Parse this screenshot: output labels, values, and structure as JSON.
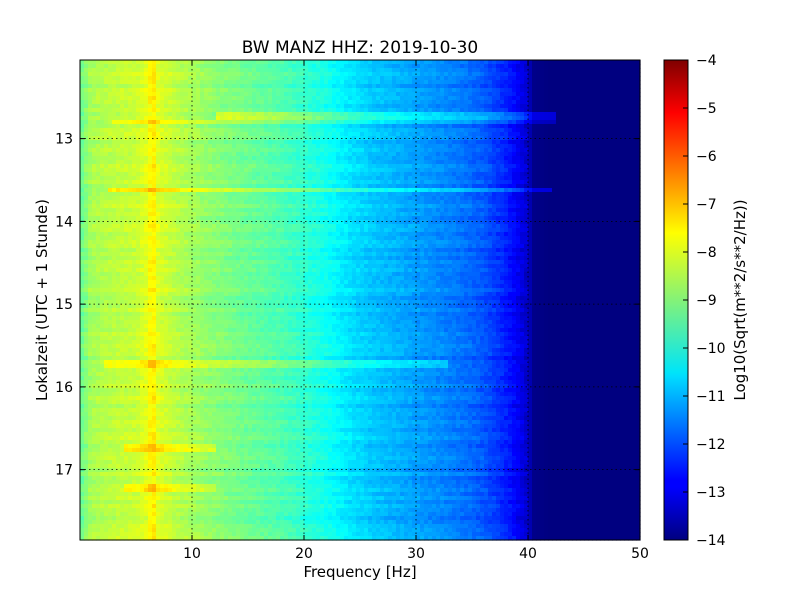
{
  "chart_data": {
    "type": "heatmap",
    "title": "BW MANZ HHZ: 2019-10-30",
    "xlabel": "Frequency [Hz]",
    "ylabel": "Lokalzeit (UTC + 1 Stunde)",
    "xlim": [
      0,
      50
    ],
    "ylim": [
      12.05,
      17.85
    ],
    "x_ticks": [
      10,
      20,
      30,
      40,
      50
    ],
    "x_tick_labels": [
      "10",
      "20",
      "30",
      "40",
      "50"
    ],
    "y_ticks": [
      13,
      14,
      15,
      16,
      17
    ],
    "y_tick_labels": [
      "13",
      "14",
      "15",
      "16",
      "17"
    ],
    "grid": true,
    "y_inverted": true,
    "colorbar": {
      "label": "Log10(Sqrt(m**2/s**2/Hz))",
      "range": [
        -14,
        -4
      ],
      "ticks": [
        -4,
        -5,
        -6,
        -7,
        -8,
        -9,
        -10,
        -11,
        -12,
        -13,
        -14
      ],
      "tick_labels": [
        "−4",
        "−5",
        "−6",
        "−7",
        "−8",
        "−9",
        "−10",
        "−11",
        "−12",
        "−13",
        "−14"
      ],
      "colormap": "jet"
    },
    "frequency_profile": {
      "frequency_hz": [
        0,
        1,
        3,
        5,
        6,
        6.5,
        7,
        9,
        12,
        15,
        18,
        20,
        22,
        24,
        26,
        28,
        30,
        32,
        34,
        36,
        37.5,
        39,
        40,
        40.5,
        42,
        45,
        50
      ],
      "level": [
        -9.3,
        -8.6,
        -8.4,
        -8.3,
        -8.0,
        -7.5,
        -8.1,
        -8.5,
        -8.9,
        -9.2,
        -9.5,
        -9.8,
        -10.1,
        -10.5,
        -10.8,
        -11.0,
        -11.2,
        -11.4,
        -11.6,
        -11.9,
        -12.3,
        -12.8,
        -13.3,
        -13.9,
        -14.0,
        -14.0,
        -14.0
      ]
    },
    "bands": [
      {
        "time": 12.72,
        "fmin": 12,
        "fmax": 42.5,
        "boost": 0.9
      },
      {
        "time": 12.8,
        "fmin": 3,
        "fmax": 42.5,
        "boost": 0.6
      },
      {
        "time": 13.62,
        "fmin": 2.5,
        "fmax": 42,
        "boost": 0.9
      },
      {
        "time": 15.72,
        "fmin": 2,
        "fmax": 33,
        "boost": 0.6
      },
      {
        "time": 16.72,
        "fmin": 4,
        "fmax": 12,
        "boost": 0.7
      },
      {
        "time": 17.22,
        "fmin": 4,
        "fmax": 12,
        "boost": 0.5
      }
    ]
  }
}
